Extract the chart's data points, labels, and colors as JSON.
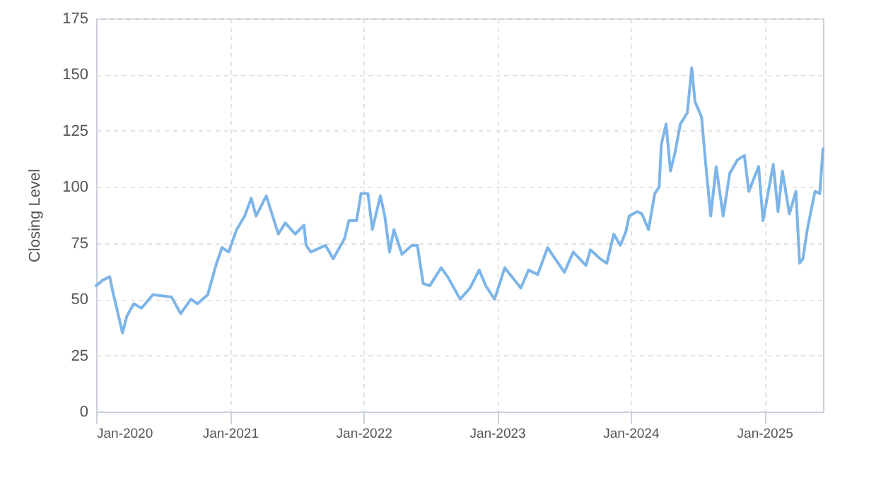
{
  "chart_data": {
    "type": "line",
    "ylabel": "Closing Level",
    "x": [
      "2020-01-01",
      "2020-01-19",
      "2020-02-07",
      "2020-02-16",
      "2020-03-13",
      "2020-03-25",
      "2020-04-13",
      "2020-05-04",
      "2020-06-04",
      "2020-07-25",
      "2020-08-19",
      "2020-09-16",
      "2020-10-04",
      "2020-11-01",
      "2020-11-25",
      "2020-12-10",
      "2020-12-28",
      "2021-01-19",
      "2021-02-10",
      "2021-02-28",
      "2021-03-13",
      "2021-04-10",
      "2021-05-13",
      "2021-06-01",
      "2021-06-28",
      "2021-07-22",
      "2021-07-28",
      "2021-08-10",
      "2021-09-19",
      "2021-10-10",
      "2021-11-10",
      "2021-11-22",
      "2021-12-13",
      "2021-12-25",
      "2022-01-13",
      "2022-01-25",
      "2022-02-16",
      "2022-02-28",
      "2022-03-13",
      "2022-03-25",
      "2022-04-16",
      "2022-05-13",
      "2022-05-28",
      "2022-06-13",
      "2022-07-01",
      "2022-08-01",
      "2022-08-19",
      "2022-09-22",
      "2022-10-19",
      "2022-11-13",
      "2022-12-01",
      "2022-12-25",
      "2023-01-22",
      "2023-03-07",
      "2023-03-28",
      "2023-04-22",
      "2023-05-19",
      "2023-07-04",
      "2023-07-28",
      "2023-09-01",
      "2023-09-13",
      "2023-10-10",
      "2023-10-28",
      "2023-11-16",
      "2023-12-04",
      "2023-12-19",
      "2023-12-28",
      "2024-01-19",
      "2024-02-01",
      "2024-02-19",
      "2024-03-07",
      "2024-03-19",
      "2024-03-25",
      "2024-04-07",
      "2024-04-19",
      "2024-05-01",
      "2024-05-16",
      "2024-06-04",
      "2024-06-16",
      "2024-06-25",
      "2024-07-13",
      "2024-07-25",
      "2024-08-07",
      "2024-08-22",
      "2024-09-10",
      "2024-09-28",
      "2024-10-19",
      "2024-11-07",
      "2024-11-19",
      "2024-12-16",
      "2024-12-28",
      "2025-01-25",
      "2025-02-07",
      "2025-02-19",
      "2025-03-10",
      "2025-03-28",
      "2025-04-07",
      "2025-04-16",
      "2025-04-28",
      "2025-05-19",
      "2025-06-01",
      "2025-06-10"
    ],
    "series": [
      {
        "color": "#7eb5e8",
        "values": [
          56,
          58.5,
          60,
          53,
          35,
          42.5,
          48,
          46,
          52,
          51,
          43.6,
          50,
          48,
          52,
          66,
          73,
          71,
          81,
          87,
          95,
          87,
          96,
          79,
          84,
          79,
          83,
          74,
          71,
          74,
          68,
          77,
          85,
          85,
          97,
          97,
          81,
          96,
          87,
          71,
          81,
          70,
          74,
          74,
          57,
          56,
          64,
          60,
          50,
          55,
          63,
          56,
          50,
          64,
          55,
          63,
          61,
          73,
          62,
          71,
          65,
          72,
          68,
          66,
          79,
          74,
          80,
          87,
          89,
          88,
          81,
          97,
          100,
          119,
          128,
          107,
          115,
          128,
          133,
          153,
          138,
          131,
          109,
          87,
          109,
          87,
          106,
          112,
          114,
          98,
          109,
          85,
          110,
          89,
          107,
          88,
          98,
          66,
          68,
          81,
          98,
          97,
          117
        ]
      }
    ],
    "xlim": [
      "2020-01-01",
      "2025-06-10"
    ],
    "xticks": [
      {
        "value": "2020-01-01",
        "label": "Jan-2020"
      },
      {
        "value": "2021-01-01",
        "label": "Jan-2021"
      },
      {
        "value": "2022-01-01",
        "label": "Jan-2022"
      },
      {
        "value": "2023-01-01",
        "label": "Jan-2023"
      },
      {
        "value": "2024-01-01",
        "label": "Jan-2024"
      },
      {
        "value": "2025-01-01",
        "label": "Jan-2025"
      }
    ],
    "ylim": [
      0,
      175
    ],
    "yticks": [
      0,
      25,
      50,
      75,
      100,
      125,
      150,
      175
    ],
    "grid": true,
    "marker": "none",
    "line_style": "solid"
  }
}
